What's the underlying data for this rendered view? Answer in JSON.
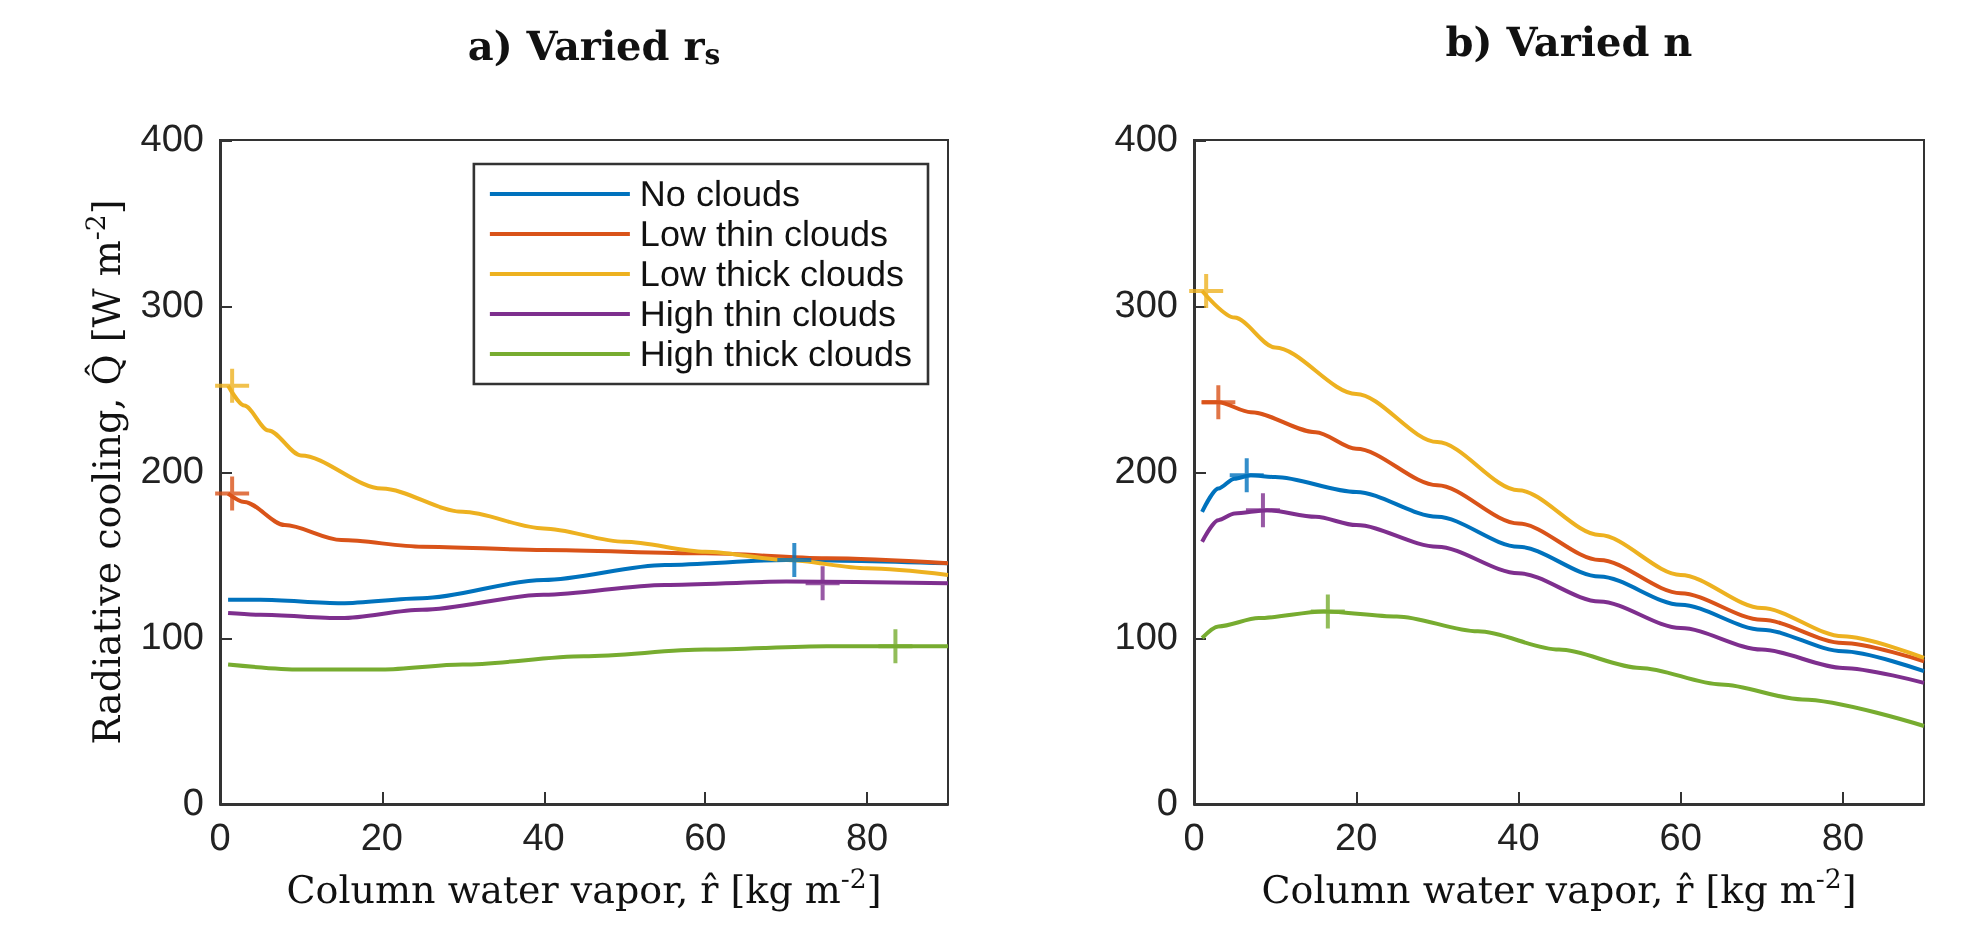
{
  "chart_data": [
    {
      "type": "line",
      "title": "a) Varied r$_{s}$",
      "xlabel": "Column water vapor, r̂ [kg m$^{-2}$]",
      "ylabel": "Radiative cooling, Q̂ [W m$^{-2}$]",
      "xlim": [
        0,
        90
      ],
      "xticks": [
        0,
        20,
        40,
        60,
        80
      ],
      "ylim": [
        0,
        400
      ],
      "yticks": [
        0,
        100,
        200,
        300,
        400
      ],
      "grid": false,
      "legend": "top right",
      "line_style": "solid",
      "series": [
        {
          "name": "No clouds",
          "color": "#0072bd",
          "marker": "none",
          "x": [
            1,
            5,
            15,
            25,
            40,
            55,
            70,
            90
          ],
          "values": [
            123,
            123,
            121,
            124,
            135,
            144,
            147,
            145
          ]
        },
        {
          "name": "Low thin clouds",
          "color": "#d95319",
          "marker": "none",
          "x": [
            1,
            3,
            8,
            15,
            25,
            40,
            60,
            75,
            90
          ],
          "values": [
            187,
            182,
            168,
            159,
            155,
            153,
            151,
            148,
            145
          ]
        },
        {
          "name": "Low thick clouds",
          "color": "#edb120",
          "marker": "none",
          "x": [
            1,
            3,
            6,
            10,
            20,
            30,
            40,
            50,
            60,
            70,
            80,
            90
          ],
          "values": [
            252,
            240,
            225,
            210,
            190,
            176,
            166,
            158,
            152,
            147,
            142,
            138
          ]
        },
        {
          "name": "High thin clouds",
          "color": "#7e2f8e",
          "marker": "none",
          "x": [
            1,
            5,
            15,
            25,
            40,
            55,
            70,
            90
          ],
          "values": [
            115,
            114,
            112,
            117,
            126,
            132,
            134,
            133
          ]
        },
        {
          "name": "High thick clouds",
          "color": "#77ac30",
          "marker": "none",
          "x": [
            1,
            10,
            20,
            30,
            45,
            60,
            75,
            90
          ],
          "values": [
            84,
            81,
            81,
            84,
            89,
            93,
            95,
            95
          ]
        },
        {
          "type": "scatter",
          "color": "#0072bd",
          "marker": "cross",
          "x": [
            71
          ],
          "values": [
            147
          ]
        },
        {
          "type": "scatter",
          "color": "#d95319",
          "marker": "cross",
          "x": [
            1.5
          ],
          "values": [
            187
          ]
        },
        {
          "type": "scatter",
          "color": "#edb120",
          "marker": "cross",
          "x": [
            1.5
          ],
          "values": [
            252
          ]
        },
        {
          "type": "scatter",
          "color": "#7e2f8e",
          "marker": "cross",
          "x": [
            74.5
          ],
          "values": [
            133
          ]
        },
        {
          "type": "scatter",
          "color": "#77ac30",
          "marker": "cross",
          "x": [
            83.5
          ],
          "values": [
            95
          ]
        }
      ]
    },
    {
      "type": "line",
      "title": "b) Varied n",
      "xlabel": "Column water vapor, r̂ [kg m$^{-2}$]",
      "xlim": [
        0,
        90
      ],
      "xticks": [
        0,
        20,
        40,
        60,
        80
      ],
      "ylim": [
        0,
        400
      ],
      "yticks": [
        0,
        100,
        200,
        300,
        400
      ],
      "grid": false,
      "line_style": "solid",
      "series": [
        {
          "color": "#0072bd",
          "marker": "none",
          "x": [
            1,
            3,
            5,
            7,
            10,
            20,
            30,
            40,
            50,
            60,
            70,
            80,
            90
          ],
          "values": [
            176,
            190,
            196,
            198,
            197,
            188,
            173,
            155,
            137,
            120,
            105,
            92,
            80
          ]
        },
        {
          "color": "#d95319",
          "marker": "none",
          "x": [
            1,
            3,
            7,
            15,
            20,
            30,
            40,
            50,
            60,
            70,
            80,
            90
          ],
          "values": [
            242,
            242,
            236,
            224,
            214,
            192,
            169,
            147,
            127,
            111,
            97,
            86
          ]
        },
        {
          "color": "#edb120",
          "marker": "none",
          "x": [
            1,
            5,
            10,
            20,
            30,
            40,
            50,
            60,
            70,
            80,
            90
          ],
          "values": [
            309,
            293,
            275,
            247,
            218,
            189,
            162,
            138,
            118,
            101,
            88
          ]
        },
        {
          "color": "#7e2f8e",
          "marker": "none",
          "x": [
            1,
            3,
            5,
            9,
            15,
            20,
            30,
            40,
            50,
            60,
            70,
            80,
            90
          ],
          "values": [
            158,
            171,
            175,
            177,
            173,
            168,
            155,
            139,
            122,
            106,
            93,
            82,
            73
          ]
        },
        {
          "color": "#77ac30",
          "marker": "none",
          "x": [
            1,
            3,
            8,
            16,
            25,
            35,
            45,
            55,
            65,
            75,
            90
          ],
          "values": [
            100,
            107,
            112,
            116,
            113,
            104,
            93,
            82,
            72,
            63,
            47
          ]
        },
        {
          "type": "scatter",
          "color": "#0072bd",
          "marker": "cross",
          "x": [
            6.5
          ],
          "values": [
            198
          ]
        },
        {
          "type": "scatter",
          "color": "#d95319",
          "marker": "cross",
          "x": [
            3
          ],
          "values": [
            242
          ]
        },
        {
          "type": "scatter",
          "color": "#edb120",
          "marker": "cross",
          "x": [
            1.5
          ],
          "values": [
            309
          ]
        },
        {
          "type": "scatter",
          "color": "#7e2f8e",
          "marker": "cross",
          "x": [
            8.5
          ],
          "values": [
            177
          ]
        },
        {
          "type": "scatter",
          "color": "#77ac30",
          "marker": "cross",
          "x": [
            16.5
          ],
          "values": [
            116
          ]
        }
      ]
    }
  ]
}
